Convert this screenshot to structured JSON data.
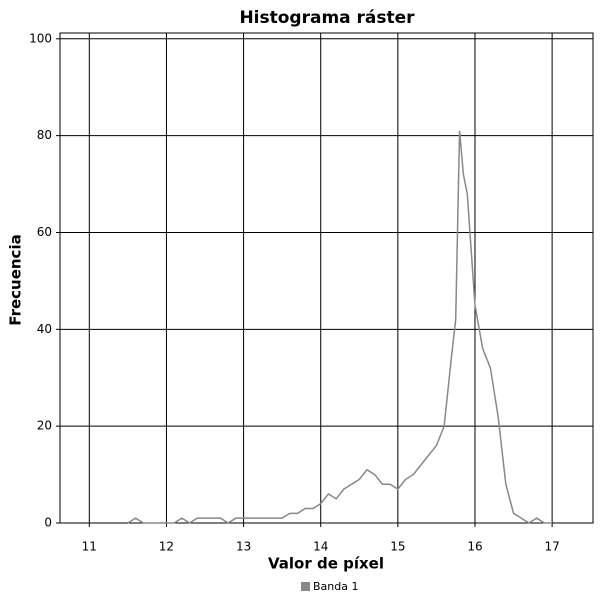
{
  "chart_data": {
    "type": "line",
    "title": "Histograma ráster",
    "x_label": "Valor de píxel",
    "y_label": "Frecuencia",
    "x": [
      11.5,
      11.6,
      11.7,
      11.8,
      11.9,
      12.0,
      12.1,
      12.2,
      12.3,
      12.4,
      12.5,
      12.6,
      12.7,
      12.8,
      12.9,
      13.0,
      13.1,
      13.2,
      13.3,
      13.4,
      13.5,
      13.6,
      13.7,
      13.8,
      13.9,
      14.0,
      14.1,
      14.2,
      14.3,
      14.4,
      14.5,
      14.6,
      14.7,
      14.8,
      14.9,
      15.0,
      15.1,
      15.2,
      15.3,
      15.4,
      15.5,
      15.6,
      15.7,
      15.75,
      15.8,
      15.85,
      15.9,
      16.0,
      16.1,
      16.2,
      16.3,
      16.4,
      16.5,
      16.6,
      16.7,
      16.8,
      16.9,
      17.0
    ],
    "series": [
      {
        "name": "Banda 1",
        "color": "#888888",
        "values": [
          0,
          1,
          0,
          0,
          0,
          0,
          0,
          1,
          0,
          1,
          1,
          1,
          1,
          0,
          1,
          1,
          1,
          1,
          1,
          1,
          1,
          2,
          2,
          3,
          3,
          4,
          6,
          5,
          7,
          8,
          9,
          11,
          10,
          8,
          8,
          7,
          9,
          10,
          12,
          14,
          16,
          20,
          35,
          42,
          81,
          72,
          68,
          45,
          36,
          32,
          22,
          8,
          2,
          1,
          0,
          1,
          0,
          0
        ]
      }
    ],
    "xlim": [
      10.62,
      17.53
    ],
    "ylim": [
      0,
      101.2
    ],
    "xticks": [
      11,
      12,
      13,
      14,
      15,
      16,
      17
    ],
    "yticks": [
      0,
      20,
      40,
      60,
      80,
      100
    ],
    "grid": true,
    "legend": "bottom"
  }
}
